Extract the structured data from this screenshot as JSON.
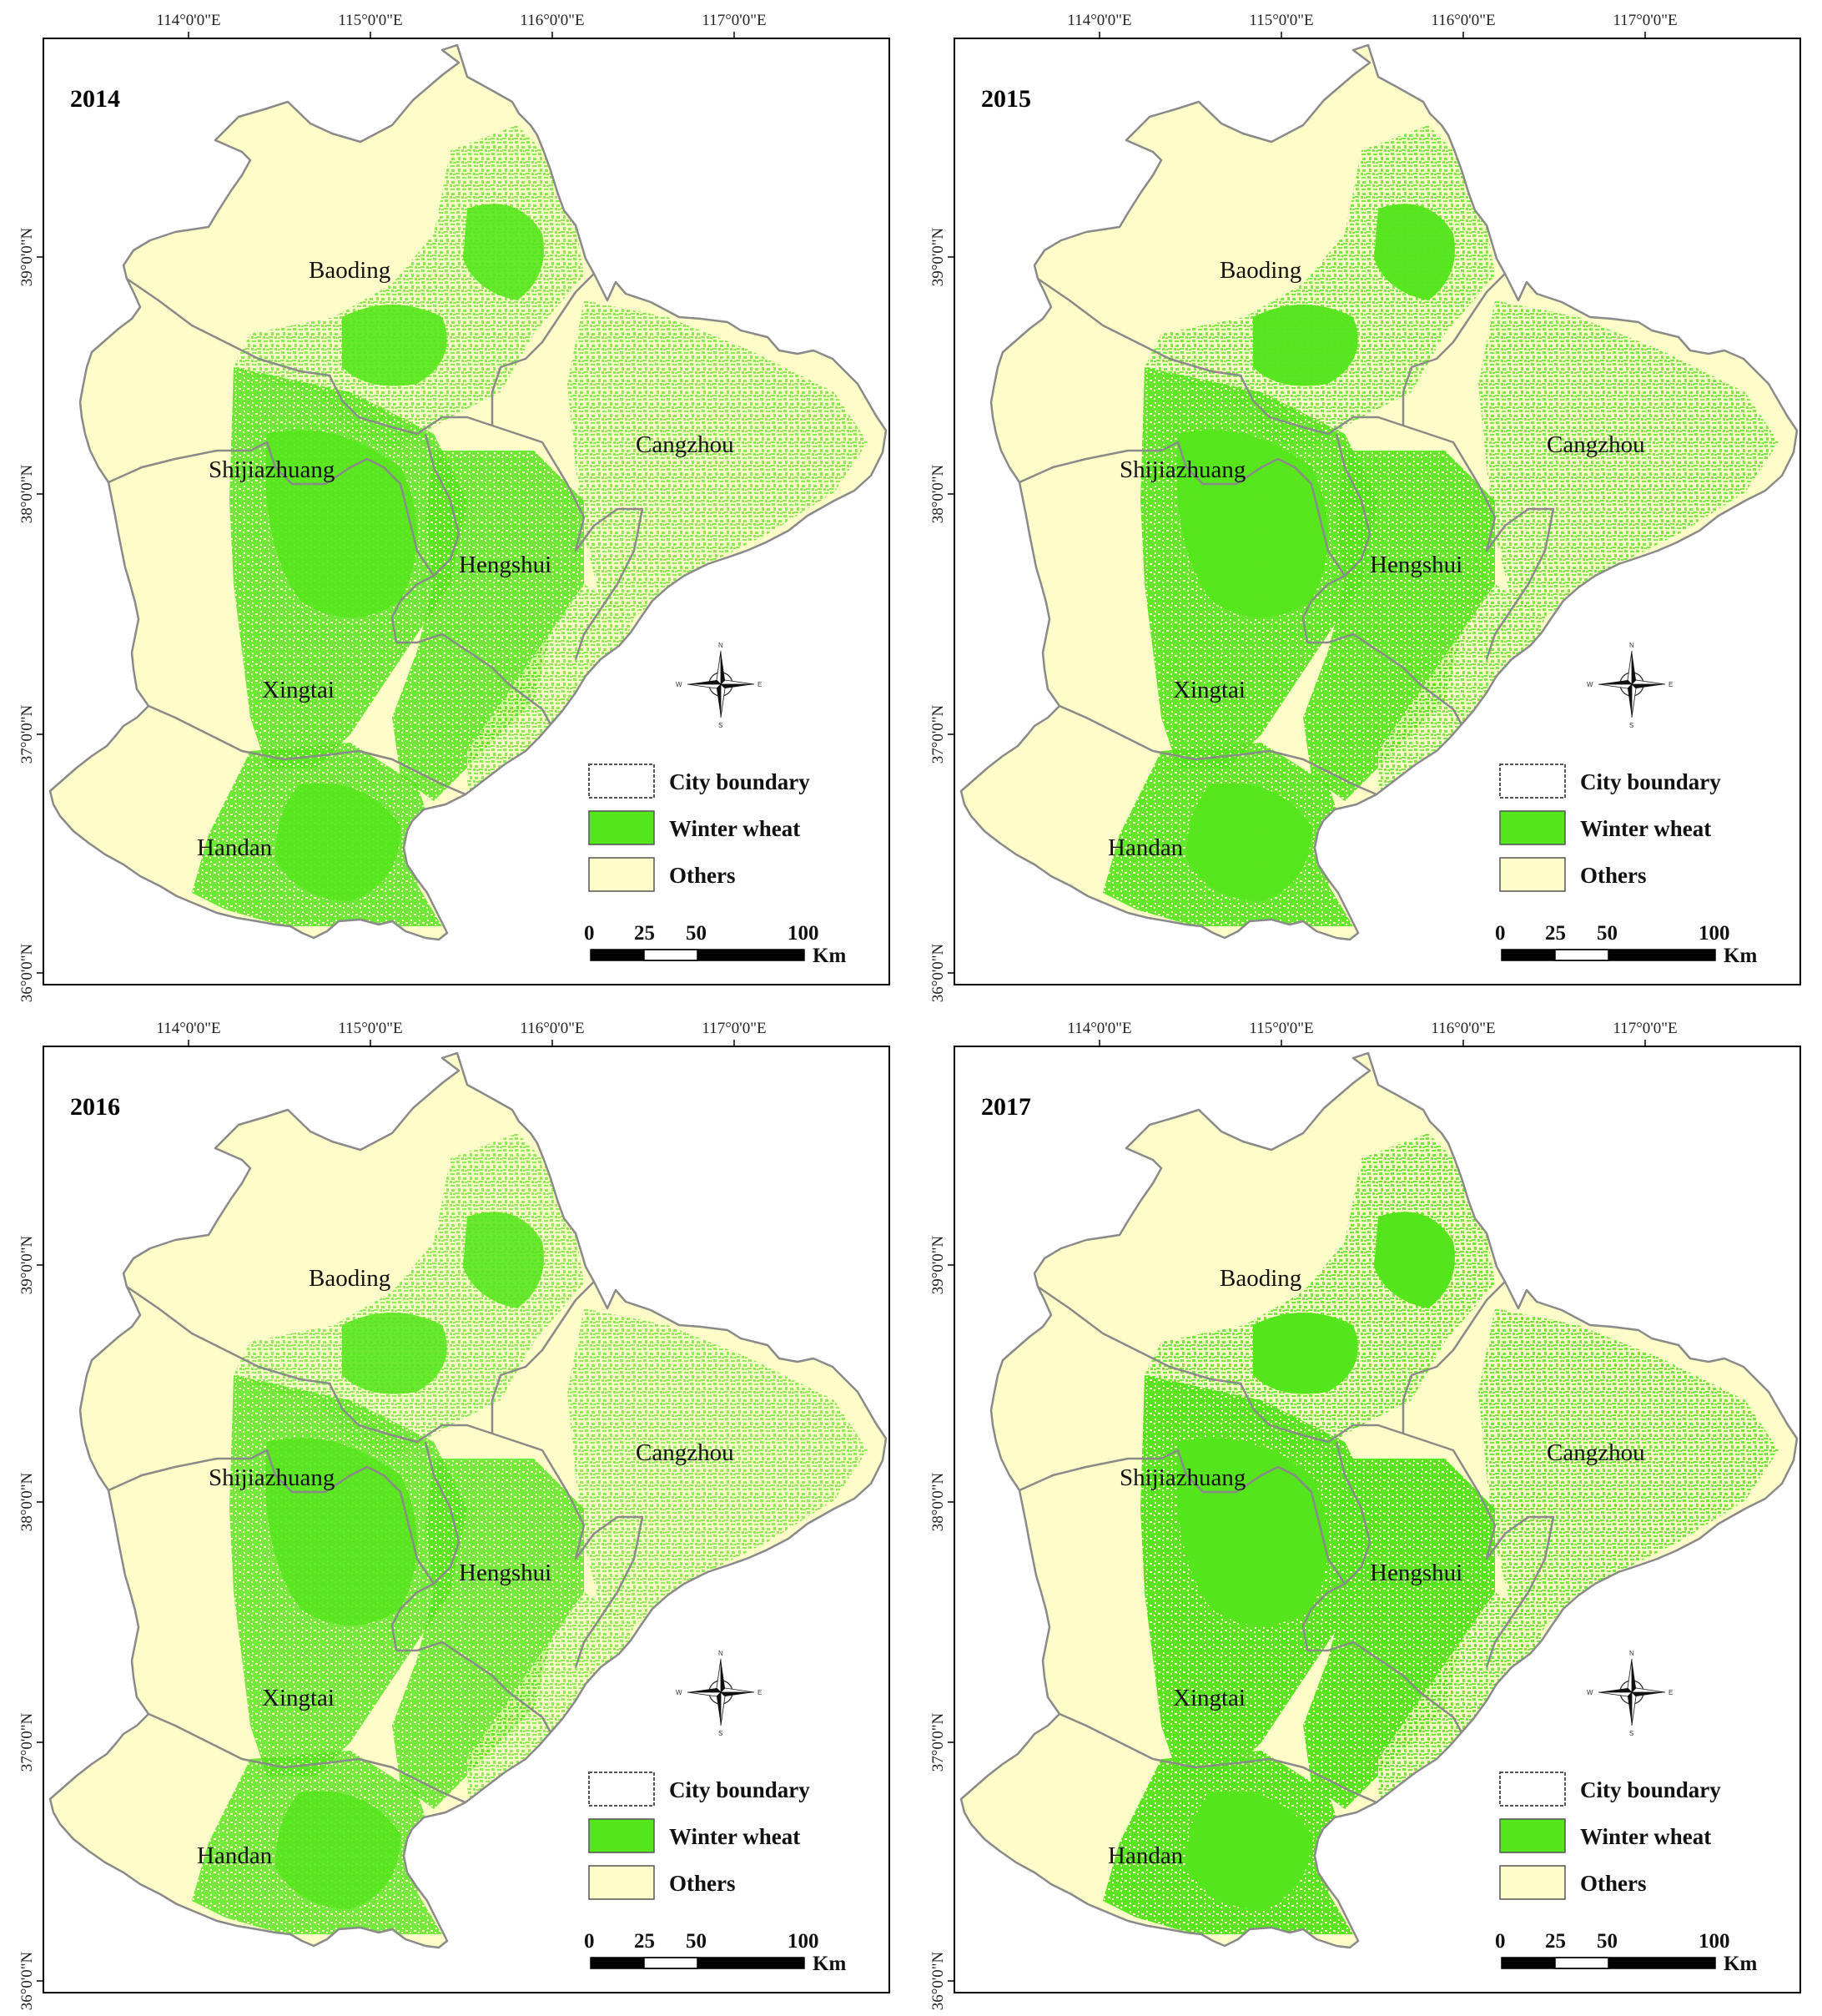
{
  "map": {
    "lon_labels": [
      "114°0'0\"E",
      "115°0'0\"E",
      "116°0'0\"E",
      "117°0'0\"E"
    ],
    "lat_labels": [
      "39°0'0\"N",
      "38°0'0\"N",
      "37°0'0\"N",
      "36°0'0\"N"
    ],
    "cities": [
      "Baoding",
      "Shijiazhuang",
      "Cangzhou",
      "Hengshui",
      "Xingtai",
      "Handan"
    ],
    "legend": {
      "boundary": "City boundary",
      "wheat": "Winter wheat",
      "others": "Others"
    },
    "scalebar": {
      "ticks": [
        "0",
        "25",
        "50",
        "100"
      ],
      "unit": "Km"
    },
    "compass": {
      "n": "N",
      "s": "S",
      "e": "E",
      "w": "W"
    },
    "colors": {
      "wheat": "#55e51c",
      "others": "#fefcc8",
      "boundary": "#8a8a8a",
      "frame": "#000000"
    }
  },
  "panels": [
    {
      "year": "2014",
      "wheat_intensity": 0.55
    },
    {
      "year": "2015",
      "wheat_intensity": 0.62
    },
    {
      "year": "2016",
      "wheat_intensity": 0.52
    },
    {
      "year": "2017",
      "wheat_intensity": 0.68
    }
  ]
}
